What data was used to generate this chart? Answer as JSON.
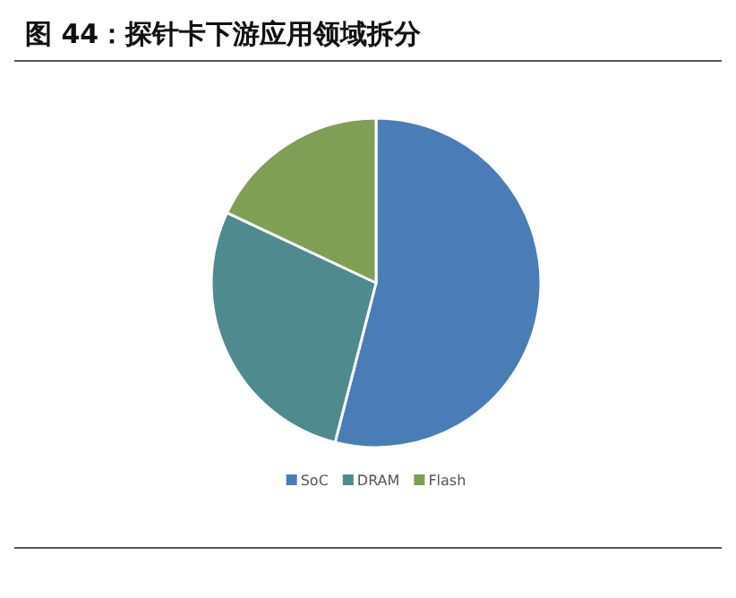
{
  "chart_data": {
    "type": "pie",
    "title": "图 44：探针卡下游应用领域拆分",
    "categories": [
      "SoC",
      "DRAM",
      "Flash"
    ],
    "values": [
      54,
      28,
      18
    ],
    "colors": [
      "#4a7db8",
      "#4f8a8f",
      "#7f9f55"
    ],
    "legend": "bottom"
  }
}
